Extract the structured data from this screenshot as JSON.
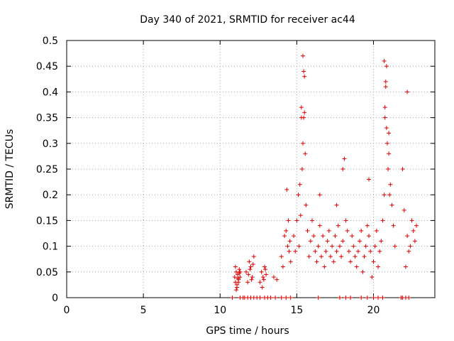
{
  "chart_data": {
    "type": "scatter",
    "title": "Day 340 of 2021, SRMTID for receiver ac44",
    "xlabel": "GPS time / hours",
    "ylabel": "SRMTID / TECUs",
    "xlim": [
      0,
      24
    ],
    "ylim": [
      0,
      0.5
    ],
    "grid": true,
    "marker": "+",
    "color": "#dd0000",
    "x_ticks": [
      "0",
      "5",
      "10",
      "15",
      "20"
    ],
    "y_ticks": [
      "0",
      "0.05",
      "0.1",
      "0.15",
      "0.2",
      "0.25",
      "0.3",
      "0.35",
      "0.4",
      "0.45",
      "0.5"
    ],
    "series": [
      {
        "name": "SRMTID",
        "x": [
          10.95,
          11.0,
          11.05,
          11.1,
          11.15,
          11.2,
          11.25,
          11.3,
          11.0,
          11.1,
          11.2,
          11.3,
          11.05,
          11.15,
          11.25,
          11.7,
          11.8,
          11.9,
          12.0,
          12.1,
          12.2,
          11.85,
          11.95,
          12.05,
          12.15,
          12.6,
          12.7,
          12.8,
          12.9,
          13.0,
          12.75,
          12.85,
          12.95,
          13.5,
          13.7,
          14.0,
          14.2,
          14.4,
          14.5,
          14.6,
          14.3,
          14.1,
          14.45,
          14.55,
          14.35,
          14.8,
          14.9,
          15.0,
          15.1,
          15.2,
          15.3,
          15.4,
          15.45,
          15.5,
          15.55,
          15.6,
          15.35,
          15.25,
          15.15,
          15.7,
          15.8,
          15.9,
          16.0,
          16.1,
          16.2,
          16.3,
          16.4,
          16.5,
          16.6,
          16.7,
          16.8,
          16.9,
          17.0,
          17.1,
          17.2,
          17.3,
          17.4,
          17.5,
          17.6,
          17.7,
          17.8,
          17.9,
          18.0,
          18.1,
          18.2,
          18.3,
          18.4,
          18.5,
          18.6,
          18.7,
          18.8,
          18.9,
          19.0,
          19.1,
          19.2,
          19.3,
          19.4,
          19.5,
          19.6,
          19.7,
          19.8,
          19.9,
          20.0,
          20.1,
          20.2,
          20.3,
          20.4,
          20.5,
          20.6,
          20.7,
          20.75,
          20.8,
          20.85,
          20.9,
          20.95,
          21.0,
          21.05,
          21.1,
          21.2,
          21.3,
          21.4,
          21.9,
          22.0,
          22.1,
          22.2,
          22.3,
          22.4,
          22.5,
          22.6,
          22.7,
          22.8,
          15.4,
          15.5,
          20.7,
          20.8,
          22.2,
          15.3,
          15.45,
          20.75,
          20.85,
          21.0,
          18.0,
          19.7,
          16.5,
          17.6
        ],
        "values": [
          0.04,
          0.03,
          0.05,
          0.02,
          0.045,
          0.035,
          0.055,
          0.04,
          0.06,
          0.025,
          0.03,
          0.05,
          0.015,
          0.038,
          0.048,
          0.05,
          0.03,
          0.07,
          0.06,
          0.04,
          0.08,
          0.045,
          0.055,
          0.035,
          0.065,
          0.03,
          0.05,
          0.04,
          0.06,
          0.045,
          0.02,
          0.035,
          0.055,
          0.04,
          0.035,
          0.08,
          0.12,
          0.1,
          0.09,
          0.07,
          0.13,
          0.06,
          0.15,
          0.11,
          0.21,
          0.12,
          0.09,
          0.15,
          0.2,
          0.22,
          0.35,
          0.3,
          0.44,
          0.36,
          0.28,
          0.18,
          0.25,
          0.16,
          0.1,
          0.13,
          0.08,
          0.11,
          0.15,
          0.12,
          0.09,
          0.07,
          0.1,
          0.14,
          0.08,
          0.12,
          0.06,
          0.09,
          0.11,
          0.13,
          0.08,
          0.1,
          0.07,
          0.12,
          0.09,
          0.14,
          0.1,
          0.08,
          0.11,
          0.27,
          0.15,
          0.13,
          0.09,
          0.07,
          0.12,
          0.1,
          0.08,
          0.06,
          0.09,
          0.11,
          0.13,
          0.05,
          0.08,
          0.1,
          0.14,
          0.12,
          0.09,
          0.04,
          0.07,
          0.1,
          0.13,
          0.06,
          0.09,
          0.11,
          0.15,
          0.2,
          0.35,
          0.42,
          0.45,
          0.3,
          0.25,
          0.28,
          0.2,
          0.22,
          0.18,
          0.14,
          0.1,
          0.25,
          0.17,
          0.06,
          0.12,
          0.09,
          0.1,
          0.15,
          0.13,
          0.11,
          0.14,
          0.47,
          0.43,
          0.46,
          0.41,
          0.4,
          0.37,
          0.35,
          0.37,
          0.33,
          0.32,
          0.25,
          0.23,
          0.2,
          0.18
        ],
        "zero_points_x": [
          10.8,
          11.3,
          11.5,
          11.6,
          11.8,
          12.0,
          12.2,
          12.4,
          12.6,
          12.9,
          13.1,
          13.3,
          13.6,
          14.0,
          14.3,
          14.6,
          16.4,
          17.8,
          18.2,
          18.5,
          19.2,
          19.6,
          20.0,
          20.3,
          20.6,
          21.8,
          21.9,
          22.1,
          22.3
        ]
      }
    ]
  }
}
